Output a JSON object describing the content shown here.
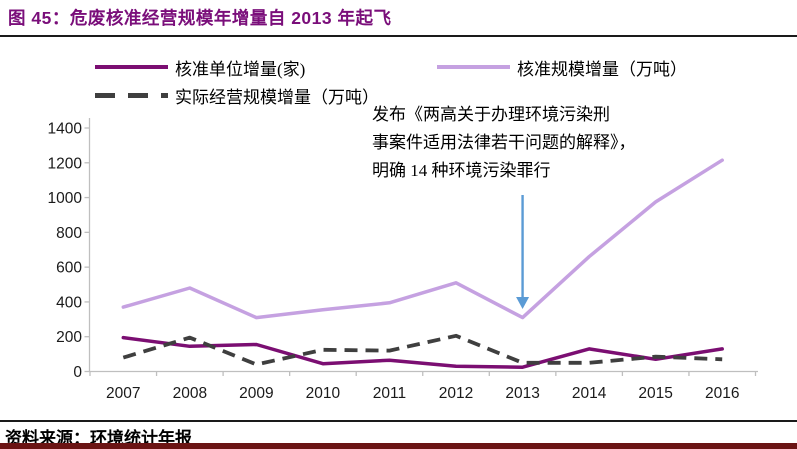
{
  "header": {
    "title": "图 45：危废核准经营规模年增量自 2013 年起飞"
  },
  "legend": [
    {
      "label": "核准单位增量(家)",
      "color": "#7B0E72",
      "style": "solid"
    },
    {
      "label": "核准规模增量（万吨）",
      "color": "#C5A1E1",
      "style": "solid"
    },
    {
      "label": "实际经营规模增量（万吨）",
      "color": "#3F3F3F",
      "style": "dashed"
    }
  ],
  "annotation": {
    "lines": [
      "发布《两高关于办理环境污染刑",
      "事案件适用法律若干问题的解释》，",
      "明确 14 种环境污染罪行"
    ]
  },
  "chart_data": {
    "type": "line",
    "title": "危废核准经营规模年增量自2013年起飞",
    "categories": [
      "2007",
      "2008",
      "2009",
      "2010",
      "2011",
      "2012",
      "2013",
      "2014",
      "2015",
      "2016"
    ],
    "series": [
      {
        "name": "核准单位增量(家)",
        "color": "#7B0E72",
        "dash": null,
        "values": [
          195,
          145,
          155,
          45,
          65,
          30,
          25,
          130,
          70,
          130
        ]
      },
      {
        "name": "核准规模增量（万吨）",
        "color": "#C5A1E1",
        "dash": null,
        "values": [
          370,
          480,
          310,
          355,
          395,
          510,
          310,
          660,
          975,
          1215
        ]
      },
      {
        "name": "实际经营规模增量（万吨）",
        "color": "#3F3F3F",
        "dash": "13 8",
        "values": [
          80,
          195,
          40,
          125,
          120,
          205,
          50,
          50,
          85,
          70
        ]
      }
    ],
    "ylim": [
      0,
      1400
    ],
    "ytick_step": 200,
    "grid": false,
    "legend_position": "top",
    "annotation_arrow_target": "2013"
  },
  "footer": {
    "source": "资料来源：环境统计年报"
  },
  "colors": {
    "title": "#7A0E7A",
    "rule": "#1A1A1A",
    "axis": "#BFBFBF",
    "tick_label": "#1A1A1A",
    "arrow": "#5B9BD5",
    "bottom_bar": "#6B1414",
    "background": "#FFFFFF"
  }
}
